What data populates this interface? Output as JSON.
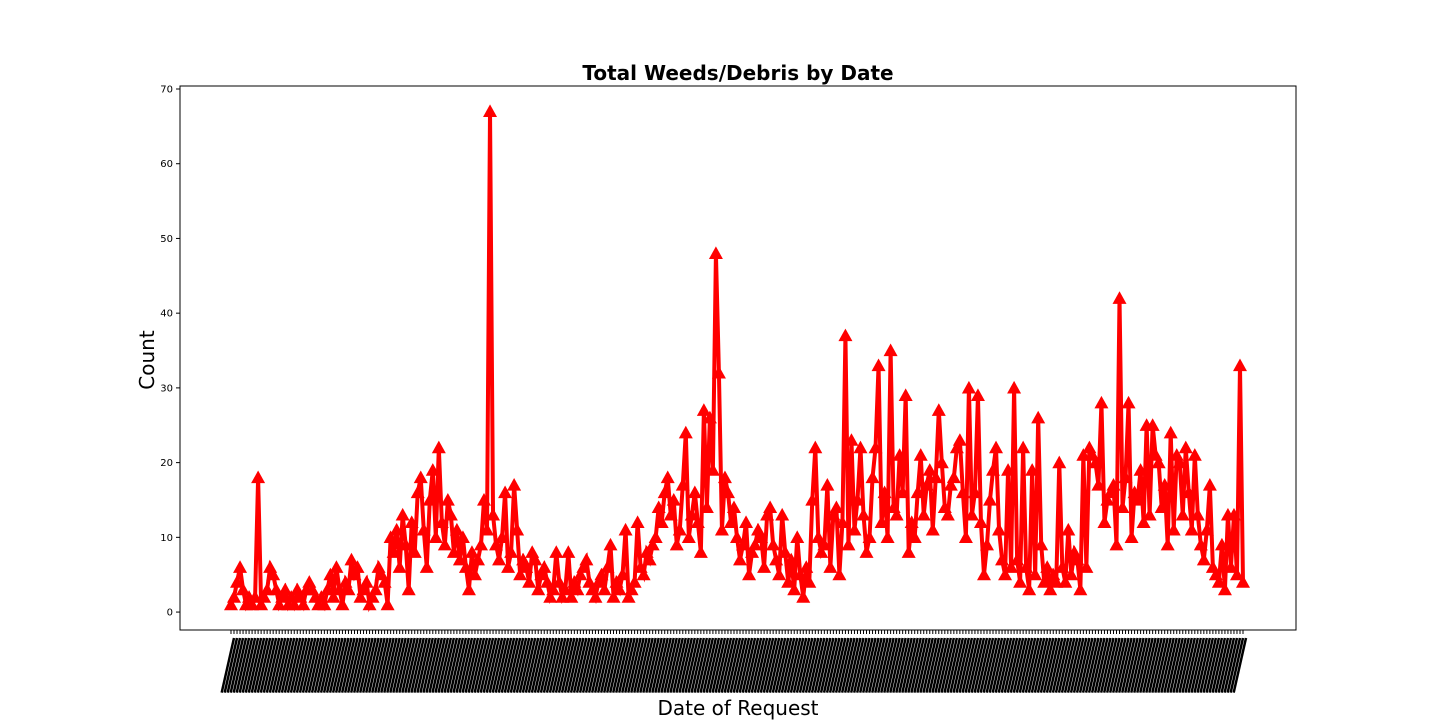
{
  "chart_data": {
    "type": "line",
    "title": "Total Weeds/Debris by Date",
    "xlabel": "Date of Request",
    "ylabel": "Count",
    "ylim": [
      -2.4,
      70.4
    ],
    "yticks": [
      0,
      10,
      20,
      30,
      40,
      50,
      60,
      70
    ],
    "grid": false,
    "legend": "none",
    "series_color": "#ff0000",
    "marker": "triangle-up",
    "series": [
      {
        "values": [
          1,
          2,
          4,
          6,
          3,
          1,
          2,
          1,
          2,
          18,
          1,
          2,
          3,
          6,
          5,
          3,
          1,
          2,
          3,
          1,
          2,
          1,
          3,
          2,
          1,
          3,
          4,
          3,
          2,
          1,
          2,
          1,
          3,
          5,
          2,
          6,
          3,
          1,
          4,
          3,
          7,
          5,
          6,
          2,
          3,
          4,
          1,
          2,
          3,
          6,
          5,
          4,
          1,
          10,
          8,
          11,
          6,
          13,
          9,
          3,
          12,
          8,
          16,
          18,
          11,
          6,
          15,
          19,
          10,
          22,
          12,
          9,
          15,
          13,
          8,
          11,
          7,
          10,
          6,
          3,
          8,
          5,
          7,
          9,
          15,
          11,
          67,
          13,
          9,
          7,
          10,
          16,
          6,
          8,
          17,
          11,
          5,
          7,
          6,
          4,
          8,
          7,
          3,
          5,
          6,
          4,
          2,
          3,
          8,
          4,
          2,
          3,
          8,
          2,
          4,
          3,
          5,
          6,
          7,
          4,
          3,
          2,
          4,
          5,
          3,
          6,
          9,
          2,
          4,
          3,
          5,
          11,
          2,
          3,
          4,
          12,
          6,
          5,
          8,
          7,
          9,
          10,
          14,
          12,
          16,
          18,
          13,
          15,
          9,
          11,
          17,
          24,
          10,
          13,
          16,
          12,
          8,
          27,
          14,
          26,
          19,
          48,
          32,
          11,
          18,
          16,
          12,
          14,
          10,
          7,
          9,
          12,
          5,
          8,
          9,
          11,
          10,
          6,
          13,
          14,
          9,
          7,
          5,
          13,
          8,
          4,
          7,
          3,
          10,
          5,
          2,
          6,
          4,
          15,
          22,
          10,
          8,
          9,
          17,
          6,
          13,
          14,
          5,
          12,
          37,
          9,
          23,
          11,
          15,
          22,
          13,
          8,
          10,
          18,
          22,
          33,
          12,
          16,
          10,
          35,
          14,
          13,
          21,
          16,
          29,
          8,
          12,
          10,
          16,
          21,
          13,
          17,
          19,
          11,
          18,
          27,
          20,
          14,
          13,
          17,
          18,
          22,
          23,
          16,
          10,
          30,
          13,
          16,
          29,
          12,
          5,
          9,
          15,
          19,
          22,
          11,
          7,
          5,
          19,
          6,
          30,
          7,
          4,
          22,
          6,
          3,
          19,
          5,
          26,
          9,
          4,
          6,
          3,
          5,
          4,
          20,
          6,
          4,
          11,
          5,
          8,
          7,
          3,
          21,
          6,
          22,
          21,
          20,
          17,
          28,
          12,
          15,
          16,
          17,
          9,
          42,
          14,
          18,
          28,
          10,
          16,
          15,
          19,
          12,
          25,
          13,
          25,
          21,
          20,
          14,
          17,
          9,
          24,
          11,
          21,
          20,
          13,
          22,
          16,
          11,
          21,
          13,
          9,
          7,
          11,
          17,
          6,
          5,
          4,
          9,
          3,
          13,
          6,
          13,
          5,
          33,
          4
        ]
      }
    ]
  }
}
